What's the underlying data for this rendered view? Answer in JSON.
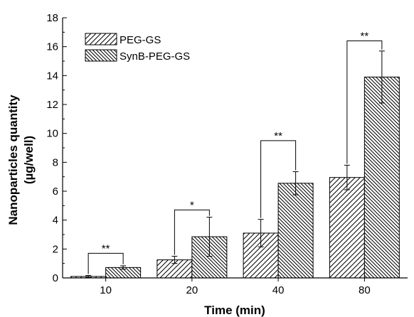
{
  "chart_data": {
    "type": "bar",
    "categories": [
      "10",
      "20",
      "40",
      "80"
    ],
    "series": [
      {
        "name": "PEG-GS",
        "values": [
          0.1,
          1.25,
          3.1,
          6.95
        ],
        "errors": [
          0.07,
          0.25,
          0.95,
          0.85
        ],
        "pattern": "forward-hatch"
      },
      {
        "name": "SynB-PEG-GS",
        "values": [
          0.72,
          2.85,
          6.55,
          13.9
        ],
        "errors": [
          0.12,
          1.35,
          0.8,
          1.8
        ],
        "pattern": "back-hatch"
      }
    ],
    "significance": [
      "**",
      "*",
      "**",
      "**"
    ],
    "significance_bracket_y": [
      1.7,
      4.7,
      9.5,
      16.4
    ],
    "xlabel": "Time (min)",
    "ylabel_line1": "Nanoparticles quantity",
    "ylabel_line2": "(µg/well)",
    "ylim": [
      0,
      18
    ],
    "yticks": [
      "0",
      "2",
      "4",
      "6",
      "8",
      "10",
      "12",
      "14",
      "16",
      "18"
    ],
    "legend_placement": "top-left",
    "grid": false,
    "colors": {
      "bar_fill": "#ffffff",
      "stroke": "#000000"
    }
  }
}
